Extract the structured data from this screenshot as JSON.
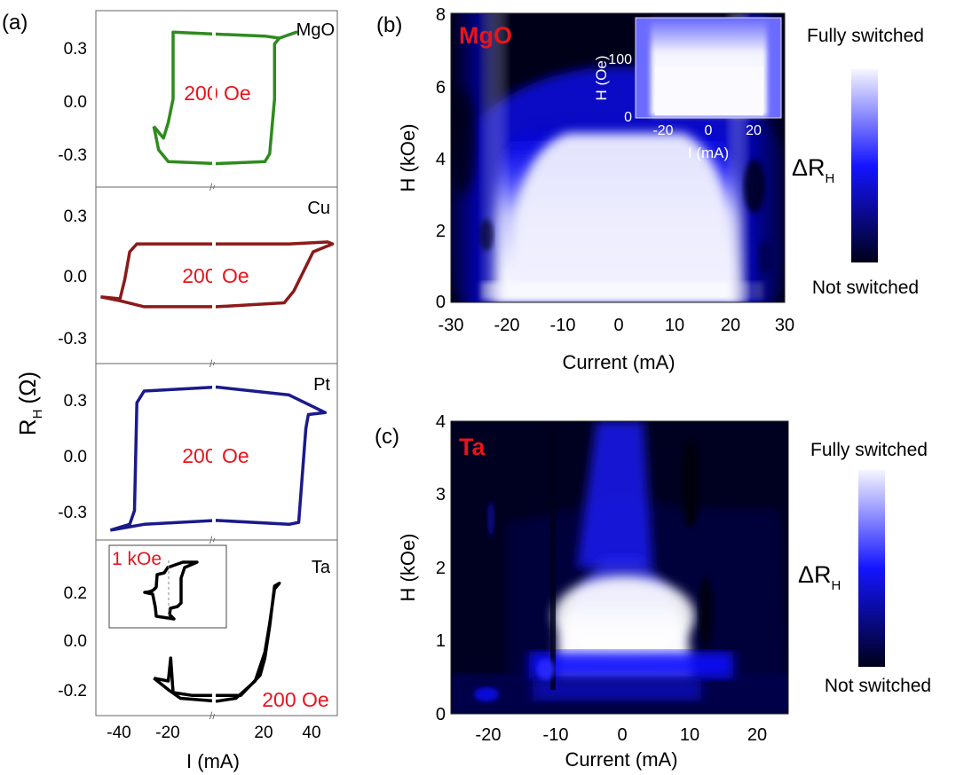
{
  "panel_a": {
    "label": "(a)",
    "ylabel": "R",
    "ylabel_sub": "H",
    "ylabel_unit": "(Ω)",
    "xlabel": "I (mA)",
    "break_mark": "//",
    "x_ticks": [
      "-40",
      "-20",
      "20",
      "40"
    ],
    "inset_field": "1 kOe",
    "subpanels": [
      {
        "name": "MgO",
        "field": "200 Oe",
        "color": "#2e8b1e",
        "yticks": [
          "0.3",
          "0.0",
          "-0.3"
        ]
      },
      {
        "name": "Cu",
        "field": "200 Oe",
        "color": "#8b1a1a",
        "yticks": [
          "0.3",
          "0.0",
          "-0.3"
        ]
      },
      {
        "name": "Pt",
        "field": "200 Oe",
        "color": "#1a1a8b",
        "yticks": [
          "0.3",
          "0.0",
          "-0.3"
        ]
      },
      {
        "name": "Ta",
        "field": "200 Oe",
        "color": "#000000",
        "yticks": [
          "0.2",
          "0.0",
          "-0.2"
        ]
      }
    ]
  },
  "panel_b": {
    "label": "(b)",
    "material": "MgO",
    "xlabel": "Current (mA)",
    "ylabel": "H (kOe)",
    "x_ticks": [
      "-30",
      "-20",
      "-10",
      "0",
      "10",
      "20",
      "30"
    ],
    "y_ticks": [
      "0",
      "2",
      "4",
      "6",
      "8"
    ],
    "inset": {
      "xlabel": "I (mA)",
      "ylabel": "H (Oe)",
      "x_ticks": [
        "-20",
        "0",
        "20"
      ],
      "y_ticks": [
        "0",
        "100"
      ]
    },
    "colorbar": {
      "top": "Fully switched",
      "bottom": "Not switched",
      "label": "ΔR",
      "label_sub": "H"
    }
  },
  "panel_c": {
    "label": "(c)",
    "material": "Ta",
    "xlabel": "Current (mA)",
    "ylabel": "H (kOe)",
    "x_ticks": [
      "-20",
      "-10",
      "0",
      "10",
      "20"
    ],
    "y_ticks": [
      "0",
      "1",
      "2",
      "3",
      "4"
    ],
    "colorbar": {
      "top": "Fully switched",
      "bottom": "Not switched",
      "label": "ΔR",
      "label_sub": "H"
    }
  },
  "colors": {
    "accent_red": "#e8141c",
    "map_dark": "#000018",
    "map_blue": "#1010ff",
    "map_white": "#f4f4ff"
  },
  "chart_data": [
    {
      "type": "line",
      "panel": "(a) MgO",
      "x_unit": "mA",
      "y_unit": "Ω",
      "xlim": [
        -50,
        50
      ],
      "ylim": [
        -0.45,
        0.45
      ],
      "series": [
        {
          "name": "MgO",
          "values": [
            [
              -26,
              -0.14
            ],
            [
              -22,
              -0.2
            ],
            [
              -20,
              -0.12
            ],
            [
              -18,
              0.0
            ],
            [
              -18,
              0.34
            ],
            [
              0,
              0.33
            ],
            [
              20,
              0.32
            ],
            [
              26,
              0.31
            ],
            [
              33,
              0.34
            ],
            [
              26,
              0.31
            ],
            [
              24,
              0.28
            ],
            [
              24,
              0.0
            ],
            [
              22,
              -0.28
            ],
            [
              20,
              -0.32
            ],
            [
              0,
              -0.33
            ],
            [
              -20,
              -0.32
            ],
            [
              -24,
              -0.26
            ],
            [
              -26,
              -0.14
            ]
          ]
        }
      ]
    },
    {
      "type": "line",
      "panel": "(a) Cu",
      "x_unit": "mA",
      "y_unit": "Ω",
      "xlim": [
        -50,
        50
      ],
      "ylim": [
        -0.45,
        0.45
      ],
      "series": [
        {
          "name": "Cu",
          "values": [
            [
              -48,
              -0.11
            ],
            [
              -40,
              -0.12
            ],
            [
              -38,
              -0.02
            ],
            [
              -36,
              0.12
            ],
            [
              -33,
              0.16
            ],
            [
              0,
              0.16
            ],
            [
              30,
              0.16
            ],
            [
              46,
              0.17
            ],
            [
              48,
              0.16
            ],
            [
              40,
              0.12
            ],
            [
              32,
              -0.08
            ],
            [
              28,
              -0.14
            ],
            [
              0,
              -0.16
            ],
            [
              -30,
              -0.16
            ],
            [
              -40,
              -0.13
            ],
            [
              -48,
              -0.11
            ]
          ]
        }
      ]
    },
    {
      "type": "line",
      "panel": "(a) Pt",
      "x_unit": "mA",
      "y_unit": "Ω",
      "xlim": [
        -50,
        50
      ],
      "ylim": [
        -0.45,
        0.45
      ],
      "series": [
        {
          "name": "Pt",
          "values": [
            [
              -44,
              -0.4
            ],
            [
              -36,
              -0.37
            ],
            [
              -34,
              -0.3
            ],
            [
              -33,
              0.25
            ],
            [
              -30,
              0.31
            ],
            [
              0,
              0.33
            ],
            [
              30,
              0.29
            ],
            [
              45,
              0.2
            ],
            [
              38,
              0.19
            ],
            [
              37,
              0.12
            ],
            [
              35,
              -0.2
            ],
            [
              34,
              -0.36
            ],
            [
              30,
              -0.37
            ],
            [
              0,
              -0.35
            ],
            [
              -30,
              -0.37
            ],
            [
              -44,
              -0.4
            ]
          ]
        }
      ]
    },
    {
      "type": "line",
      "panel": "(a) Ta",
      "x_unit": "mA",
      "y_unit": "Ω",
      "xlim": [
        -50,
        50
      ],
      "ylim": [
        -0.26,
        0.35
      ],
      "series": [
        {
          "name": "Ta",
          "values": [
            [
              -26,
              -0.13
            ],
            [
              -20,
              -0.14
            ],
            [
              -19,
              -0.06
            ],
            [
              -18,
              -0.18
            ],
            [
              -10,
              -0.19
            ],
            [
              10,
              -0.19
            ],
            [
              18,
              -0.12
            ],
            [
              20,
              -0.06
            ],
            [
              22,
              0.05
            ],
            [
              24,
              0.19
            ],
            [
              26,
              0.2
            ],
            [
              24,
              0.18
            ],
            [
              22,
              0.06
            ],
            [
              20,
              -0.04
            ],
            [
              16,
              -0.14
            ],
            [
              8,
              -0.2
            ],
            [
              0,
              -0.21
            ],
            [
              -15,
              -0.2
            ],
            [
              -20,
              -0.17
            ],
            [
              -26,
              -0.13
            ]
          ]
        }
      ]
    },
    {
      "type": "heatmap",
      "panel": "(b) MgO",
      "xlabel": "Current (mA)",
      "ylabel": "H (kOe)",
      "xlim": [
        -30,
        30
      ],
      "ylim": [
        0,
        8
      ],
      "description_values": {
        "switched_current_edges_mA": [
          -22,
          21
        ],
        "switched_field_top_kOe": 5.2
      }
    },
    {
      "type": "heatmap",
      "panel": "(c) Ta",
      "xlabel": "Current (mA)",
      "ylabel": "H (kOe)",
      "xlim": [
        -25,
        25
      ],
      "ylim": [
        0,
        4
      ],
      "description_values": {
        "switched_current_edges_mA": [
          -10,
          11
        ],
        "switched_field_range_kOe": [
          0.8,
          2.0
        ]
      }
    }
  ]
}
